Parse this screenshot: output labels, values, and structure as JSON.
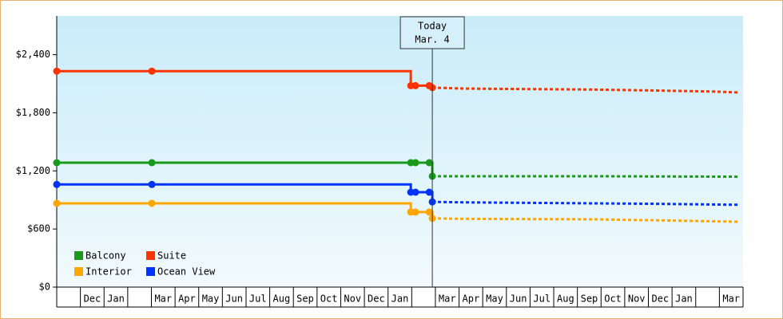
{
  "chart_data": {
    "type": "step-line",
    "categories": [
      null,
      "Dec",
      "Jan",
      null,
      "Mar",
      "Apr",
      "May",
      "Jun",
      "Jul",
      "Aug",
      "Sep",
      "Oct",
      "Nov",
      "Dec",
      "Jan",
      null,
      "Mar",
      "Apr",
      "May",
      "Jun",
      "Jul",
      "Aug",
      "Sep",
      "Oct",
      "Nov",
      "Dec",
      "Jan",
      null,
      "Mar"
    ],
    "xlim": [
      0,
      29
    ],
    "ylim": [
      0,
      2800
    ],
    "yticks": [
      {
        "value": 0,
        "label": "$0"
      },
      {
        "value": 600,
        "label": "$600"
      },
      {
        "value": 1200,
        "label": "$1,200"
      },
      {
        "value": 1800,
        "label": "$1,800"
      },
      {
        "value": 2400,
        "label": "$2,400"
      }
    ],
    "legend": "lower left",
    "annotation": {
      "lines": [
        "Today",
        "Mar. 4"
      ],
      "x": 15.87
    },
    "series": [
      {
        "name": "Balcony",
        "color": "#1a9a1a",
        "x": [
          0,
          4.02,
          14.96,
          15.16,
          15.74,
          15.87
        ],
        "values": [
          1285,
          1285,
          1285,
          1285,
          1285,
          1145
        ],
        "forecast_x": [
          15.87,
          22.5,
          28.8
        ],
        "forecast_values": [
          1145,
          1145,
          1140
        ]
      },
      {
        "name": "Suite",
        "color": "#ff3300",
        "x": [
          0,
          4.02,
          14.96,
          15.16,
          15.74,
          15.87
        ],
        "values": [
          2230,
          2230,
          2080,
          2080,
          2080,
          2060
        ],
        "forecast_x": [
          15.87,
          17.2,
          22.6,
          25.3,
          27.6,
          28.8
        ],
        "forecast_values": [
          2060,
          2050,
          2040,
          2030,
          2020,
          2010
        ]
      },
      {
        "name": "Interior",
        "color": "#ffa500",
        "x": [
          0,
          4.02,
          14.96,
          15.16,
          15.74,
          15.87
        ],
        "values": [
          865,
          865,
          775,
          775,
          775,
          710
        ],
        "forecast_x": [
          15.87,
          17.2,
          22.6,
          25.3,
          28.8
        ],
        "forecast_values": [
          710,
          705,
          700,
          690,
          675
        ]
      },
      {
        "name": "Ocean View",
        "color": "#0033ff",
        "x": [
          0,
          4.02,
          14.96,
          15.16,
          15.74,
          15.87
        ],
        "values": [
          1060,
          1060,
          980,
          980,
          980,
          880
        ],
        "forecast_x": [
          15.87,
          17.2,
          22.6,
          25.3,
          28.8
        ],
        "forecast_values": [
          880,
          875,
          865,
          860,
          850
        ]
      }
    ]
  }
}
